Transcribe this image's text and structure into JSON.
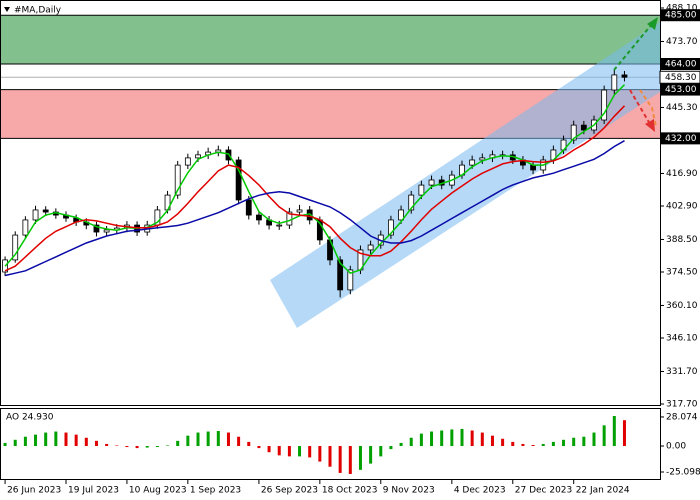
{
  "chart_data": [
    {
      "type": "candlestick",
      "title": "#MA,Daily",
      "xlim": [
        -0.5,
        64.5
      ],
      "ylim": [
        317.7,
        488.1
      ],
      "yticks": [
        {
          "value": 488.1,
          "label": "488.10"
        },
        {
          "value": 473.7,
          "label": "473.70"
        },
        {
          "value": 445.3,
          "label": "445.30"
        },
        {
          "value": 416.9,
          "label": "416.90"
        },
        {
          "value": 402.9,
          "label": "402.90"
        },
        {
          "value": 388.5,
          "label": "388.50"
        },
        {
          "value": 374.5,
          "label": "374.50"
        },
        {
          "value": 360.1,
          "label": "360.10"
        },
        {
          "value": 346.1,
          "label": "346.10"
        },
        {
          "value": 331.7,
          "label": "331.70"
        },
        {
          "value": 317.7,
          "label": "317.70"
        }
      ],
      "candles": {
        "open": [
          374.5,
          379.7,
          390.4,
          396.9,
          401.2,
          400.3,
          399.0,
          397.7,
          396.0,
          394.7,
          391.7,
          392.6,
          393.4,
          394.7,
          391.7,
          394.7,
          401.2,
          407.6,
          420.5,
          423.6,
          424.9,
          426.1,
          427.0,
          422.7,
          405.5,
          399.0,
          396.9,
          394.7,
          394.7,
          400.3,
          401.2,
          396.9,
          388.3,
          379.7,
          366.8,
          375.4,
          384.0,
          386.1,
          390.4,
          396.9,
          401.2,
          407.6,
          411.9,
          414.1,
          411.9,
          416.2,
          420.5,
          422.7,
          423.6,
          424.9,
          424.9,
          422.7,
          420.5,
          418.4,
          422.7,
          427.0,
          431.3,
          437.7,
          435.6,
          439.9,
          452.8,
          459.3
        ],
        "high": [
          381.2,
          392.0,
          398.5,
          403.0,
          402.8,
          401.9,
          400.6,
          399.2,
          397.6,
          396.1,
          394.3,
          395.1,
          396.4,
          396.3,
          396.5,
          402.9,
          409.4,
          422.3,
          425.4,
          426.7,
          428.0,
          428.9,
          428.6,
          424.1,
          407.2,
          400.8,
          398.6,
          396.5,
          402.1,
          403.4,
          402.9,
          398.4,
          389.9,
          381.3,
          377.2,
          385.9,
          388.0,
          392.3,
          398.7,
          403.1,
          409.4,
          413.8,
          416.0,
          415.9,
          418.1,
          422.4,
          424.6,
          425.5,
          426.8,
          426.7,
          426.6,
          424.4,
          422.2,
          424.5,
          428.9,
          433.2,
          439.6,
          439.5,
          441.8,
          454.7,
          461.4,
          461.0
        ],
        "low": [
          372.8,
          378.5,
          388.9,
          395.2,
          398.6,
          397.4,
          396.1,
          394.3,
          392.9,
          389.8,
          389.9,
          390.8,
          391.6,
          390.0,
          390.1,
          393.1,
          399.7,
          406.0,
          418.8,
          421.9,
          423.1,
          424.3,
          420.9,
          403.6,
          397.1,
          394.9,
          392.8,
          392.6,
          393.0,
          398.5,
          395.0,
          386.2,
          377.4,
          363.6,
          364.9,
          373.6,
          382.2,
          384.5,
          388.8,
          395.2,
          399.6,
          405.9,
          410.2,
          410.1,
          410.3,
          414.6,
          418.9,
          421.0,
          421.8,
          423.0,
          421.0,
          418.7,
          416.6,
          416.8,
          421.0,
          425.3,
          429.6,
          433.8,
          434.0,
          438.2,
          451.0,
          456.5
        ],
        "close": [
          379.7,
          390.4,
          396.9,
          401.2,
          400.3,
          399.0,
          397.7,
          396.0,
          394.7,
          391.7,
          392.6,
          393.4,
          394.7,
          391.7,
          394.7,
          401.2,
          407.6,
          420.5,
          423.6,
          424.9,
          426.1,
          427.0,
          422.7,
          405.5,
          399.0,
          396.9,
          394.7,
          394.7,
          400.3,
          401.2,
          396.9,
          388.3,
          379.7,
          366.8,
          375.4,
          384.0,
          386.1,
          390.4,
          396.9,
          401.2,
          407.6,
          411.9,
          414.1,
          411.9,
          416.2,
          420.5,
          422.7,
          423.6,
          424.9,
          424.9,
          422.7,
          420.5,
          418.4,
          422.7,
          427.0,
          431.3,
          437.7,
          435.6,
          439.9,
          452.8,
          459.3,
          458.3
        ]
      },
      "series": [
        {
          "color": "#00c800",
          "values": [
            377,
            382,
            389,
            396,
            399,
            400,
            399,
            398,
            396,
            394,
            393,
            392.5,
            393.5,
            393.3,
            393.7,
            395.9,
            401,
            409.8,
            417.2,
            423,
            424.9,
            426,
            425.3,
            418.4,
            409,
            400.5,
            396.9,
            395.4,
            396.6,
            398.7,
            399.5,
            395.5,
            388.3,
            378.3,
            374,
            375.4,
            381.8,
            386.8,
            391.1,
            396.2,
            401.9,
            406.9,
            411.2,
            412.6,
            414,
            416.2,
            419.8,
            422.3,
            423.7,
            424.5,
            424.2,
            422.7,
            420.5,
            420.5,
            422.7,
            426.9,
            432,
            434.9,
            437.7,
            442.8,
            450.7,
            455.1
          ]
        },
        {
          "color": "#e00000",
          "values": [
            375,
            377,
            381,
            385,
            389,
            392,
            394,
            396,
            397,
            396.5,
            395.5,
            394.5,
            394,
            393.5,
            393.5,
            394.5,
            396,
            399.5,
            404,
            409,
            413.5,
            418,
            420.5,
            419.5,
            416,
            412,
            407,
            402.5,
            399.5,
            399,
            398.5,
            397,
            394,
            389,
            385,
            382.5,
            381.5,
            381.5,
            383.5,
            387.5,
            392,
            397,
            401.5,
            405,
            408.5,
            411.5,
            414.5,
            417,
            419,
            421,
            422,
            422.5,
            422,
            421.7,
            422.3,
            424,
            427,
            429.5,
            432.5,
            436.5,
            441.5,
            446
          ]
        },
        {
          "color": "#0a0aa8",
          "values": [
            373,
            374,
            375,
            377,
            379,
            381,
            383,
            385,
            387,
            388.5,
            390,
            391,
            392,
            392.5,
            393,
            393.5,
            394,
            394.5,
            395.5,
            397,
            398.5,
            400,
            402,
            404,
            406,
            407.5,
            408.5,
            409,
            408.5,
            407,
            405.5,
            404,
            402.5,
            400,
            397,
            393.5,
            390,
            388,
            387,
            387,
            388,
            390,
            392.5,
            395,
            397.5,
            400,
            402.5,
            405,
            407.5,
            410,
            412,
            413.5,
            415,
            416,
            417,
            418.5,
            420,
            421.5,
            423,
            425.5,
            428.5,
            431
          ]
        }
      ],
      "levels": [
        {
          "value": 485,
          "label": "485.00"
        },
        {
          "value": 464,
          "label": "464.00"
        },
        {
          "value": 453,
          "label": "453.00"
        },
        {
          "value": 432,
          "label": "432.00"
        }
      ],
      "zones": [
        {
          "from": 485,
          "to": 464,
          "color": "#82c08e"
        },
        {
          "from": 453,
          "to": 432,
          "color": "#f7a8a8"
        }
      ],
      "last_price": {
        "value": 458.3,
        "label": "458.30"
      }
    },
    {
      "type": "bar",
      "title": "AO 24.930",
      "xlim": [
        -0.5,
        64.5
      ],
      "ylim": [
        -30.9,
        34.8
      ],
      "yticks": [
        28.074,
        {
          "value": 0,
          "label": "0.00"
        },
        -25.098
      ],
      "xticks": [
        {
          "value": 0,
          "label": "26 Jun 2023"
        },
        {
          "value": 6,
          "label": "19 Jul 2023"
        },
        {
          "value": 12,
          "label": "10 Aug 2023"
        },
        {
          "value": 18,
          "label": "1 Sep 2023"
        },
        {
          "value": 25,
          "label": "26 Sep 2023"
        },
        {
          "value": 31,
          "label": "18 Oct 2023"
        },
        {
          "value": 37,
          "label": "9 Nov 2023"
        },
        {
          "value": 44,
          "label": "4 Dec 2023"
        },
        {
          "value": 50,
          "label": "27 Dec 2023"
        },
        {
          "value": 56,
          "label": "22 Jan 2024"
        }
      ],
      "up_color": "#00a000",
      "down_color": "#e00000",
      "values": [
        3,
        6,
        9,
        11,
        13,
        14,
        13,
        11,
        8,
        5,
        2,
        0.5,
        -1,
        -2,
        -1.5,
        -1,
        0.5,
        5,
        10,
        13,
        14,
        14.5,
        13,
        9,
        4,
        -2,
        -6,
        -9,
        -10,
        -10,
        -11,
        -15,
        -20,
        -26,
        -27,
        -23,
        -17,
        -10,
        -3,
        3,
        8,
        12,
        14,
        15,
        16,
        16.5,
        15,
        13,
        10,
        7,
        4,
        2,
        1,
        2,
        4,
        6,
        8,
        9,
        13,
        20,
        29,
        24.93
      ]
    }
  ]
}
